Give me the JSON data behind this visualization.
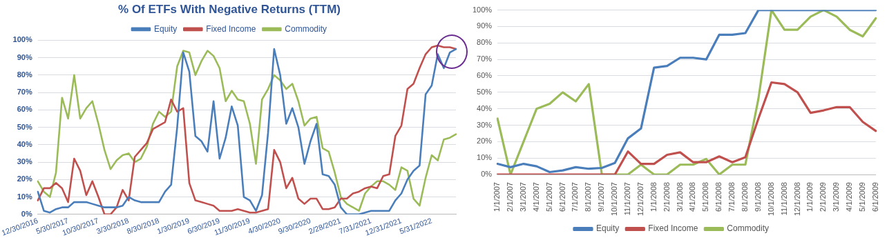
{
  "chart_data": [
    {
      "type": "line",
      "title": "% Of ETFs With Negative Returns (TTM)",
      "categories": [
        "12/30/2016",
        null,
        null,
        null,
        null,
        "5/30/2017",
        null,
        null,
        null,
        null,
        "10/30/2017",
        null,
        null,
        null,
        null,
        "3/30/2018",
        null,
        null,
        null,
        null,
        "8/30/2018",
        null,
        null,
        null,
        null,
        "1/30/2019",
        null,
        null,
        null,
        null,
        "6/30/2019",
        null,
        null,
        null,
        null,
        "11/30/2019",
        null,
        null,
        null,
        null,
        "4/30/2020",
        null,
        null,
        null,
        null,
        "9/30/2020",
        null,
        null,
        null,
        null,
        "2/28/2021",
        null,
        null,
        null,
        null,
        "7/31/2021",
        null,
        null,
        null,
        null,
        "12/31/2021",
        null,
        null,
        null,
        null,
        "5/31/2022",
        null,
        null,
        null,
        null
      ],
      "series": [
        {
          "name": "Equity",
          "color": "#4a7ebb",
          "values": [
            13,
            2,
            1,
            3,
            4,
            4,
            7,
            7,
            7,
            6,
            5,
            4,
            4,
            4,
            5,
            10,
            8,
            7,
            7,
            7,
            7,
            13,
            17,
            50,
            93,
            82,
            45,
            42,
            36,
            65,
            32,
            44,
            62,
            51,
            10,
            8,
            2,
            11,
            47,
            95,
            80,
            52,
            61,
            50,
            29,
            42,
            52,
            23,
            22,
            17,
            4,
            0,
            0,
            0,
            1,
            2,
            2,
            2,
            2,
            8,
            12,
            20,
            25,
            28,
            69,
            74,
            92,
            84,
            93,
            95
          ]
        },
        {
          "name": "Fixed Income",
          "color": "#c0504d",
          "values": [
            8,
            15,
            15,
            18,
            15,
            7,
            32,
            25,
            11,
            19,
            10,
            0,
            0,
            4,
            14,
            8,
            33,
            37,
            41,
            49,
            51,
            53,
            66,
            59,
            61,
            18,
            8,
            7,
            6,
            5,
            2,
            2,
            2,
            3,
            2,
            1,
            1,
            2,
            3,
            37,
            30,
            15,
            21,
            9,
            6,
            9,
            9,
            3,
            3,
            4,
            9,
            9,
            12,
            13,
            15,
            16,
            15,
            22,
            23,
            45,
            51,
            72,
            75,
            84,
            92,
            96,
            97,
            96,
            96,
            95
          ]
        },
        {
          "name": "Commodity",
          "color": "#9bbb59",
          "values": [
            19,
            13,
            10,
            24,
            67,
            55,
            80,
            55,
            61,
            65,
            52,
            37,
            26,
            31,
            34,
            35,
            30,
            32,
            39,
            52,
            59,
            56,
            59,
            85,
            94,
            93,
            80,
            88,
            94,
            91,
            84,
            65,
            71,
            66,
            65,
            52,
            29,
            66,
            72,
            80,
            77,
            72,
            75,
            65,
            51,
            55,
            56,
            38,
            36,
            24,
            10,
            6,
            4,
            2,
            12,
            16,
            19,
            19,
            17,
            14,
            27,
            25,
            9,
            5,
            21,
            34,
            31,
            43,
            44,
            46
          ]
        }
      ],
      "ylim": [
        0,
        100
      ],
      "yticks": [
        {
          "value": 0,
          "label": "0%"
        },
        {
          "value": 10,
          "label": "10%"
        },
        {
          "value": 20,
          "label": "20%"
        },
        {
          "value": 30,
          "label": "30%"
        },
        {
          "value": 40,
          "label": "40%"
        },
        {
          "value": 50,
          "label": "50%"
        },
        {
          "value": 60,
          "label": "60%"
        },
        {
          "value": 70,
          "label": "70%"
        },
        {
          "value": 80,
          "label": "80%"
        },
        {
          "value": 90,
          "label": "90%"
        },
        {
          "value": 100,
          "label": "100%"
        }
      ],
      "grid": "y",
      "legend": "top",
      "marker": "none",
      "line_style": "solid"
    },
    {
      "type": "line",
      "categories": [
        "1/1/2007",
        "2/1/2007",
        "3/1/2007",
        "4/1/2007",
        "5/1/2007",
        "6/1/2007",
        "7/1/2007",
        "8/1/2007",
        "9/1/2007",
        "10/1/2007",
        "11/1/2007",
        "12/1/2007",
        "1/1/2008",
        "2/1/2008",
        "3/1/2008",
        "4/1/2008",
        "5/1/2008",
        "6/1/2008",
        "7/1/2008",
        "8/1/2008",
        "9/1/2008",
        "10/1/2008",
        "11/1/2008",
        "12/1/2008",
        "1/1/2009",
        "2/1/2009",
        "3/1/2009",
        "4/1/2009",
        "5/1/2009",
        "6/1/2009"
      ],
      "series": [
        {
          "name": "Equity",
          "color": "#4a7ebb",
          "values": [
            6.5,
            4.5,
            6.5,
            5,
            1.5,
            2.5,
            4.5,
            3.5,
            4,
            7,
            22,
            28,
            65,
            66,
            71,
            71,
            70,
            85,
            85,
            86,
            100,
            100,
            100,
            100,
            100,
            100,
            100,
            100,
            100,
            100
          ]
        },
        {
          "name": "Fixed Income",
          "color": "#c0504d",
          "values": [
            0,
            0,
            0,
            0,
            0,
            0,
            0,
            0,
            0,
            0,
            14,
            6.5,
            6.5,
            12,
            13.5,
            7.5,
            7.5,
            11,
            7.5,
            10.5,
            34,
            56,
            55,
            50,
            37.5,
            39,
            41,
            41,
            32,
            26.5
          ]
        },
        {
          "name": "Commodity",
          "color": "#9bbb59",
          "values": [
            34,
            0,
            20,
            40,
            43,
            50,
            44.5,
            55,
            0,
            0,
            0,
            6,
            0,
            0,
            6,
            6,
            9.5,
            0,
            6,
            6,
            46,
            100,
            88,
            88,
            96,
            100,
            96,
            88,
            84,
            95
          ]
        }
      ],
      "ylim": [
        0,
        100
      ],
      "yticks": [
        {
          "value": 0,
          "label": "0%"
        },
        {
          "value": 10,
          "label": "10%"
        },
        {
          "value": 20,
          "label": "20%"
        },
        {
          "value": 30,
          "label": "30%"
        },
        {
          "value": 40,
          "label": "40%"
        },
        {
          "value": 50,
          "label": "50%"
        },
        {
          "value": 60,
          "label": "60%"
        },
        {
          "value": 70,
          "label": "70%"
        },
        {
          "value": 80,
          "label": "80%"
        },
        {
          "value": 90,
          "label": "90%"
        },
        {
          "value": 100,
          "label": "100%"
        }
      ],
      "grid": "y",
      "legend": "bottom",
      "marker": "none",
      "line_style": "solid"
    }
  ]
}
